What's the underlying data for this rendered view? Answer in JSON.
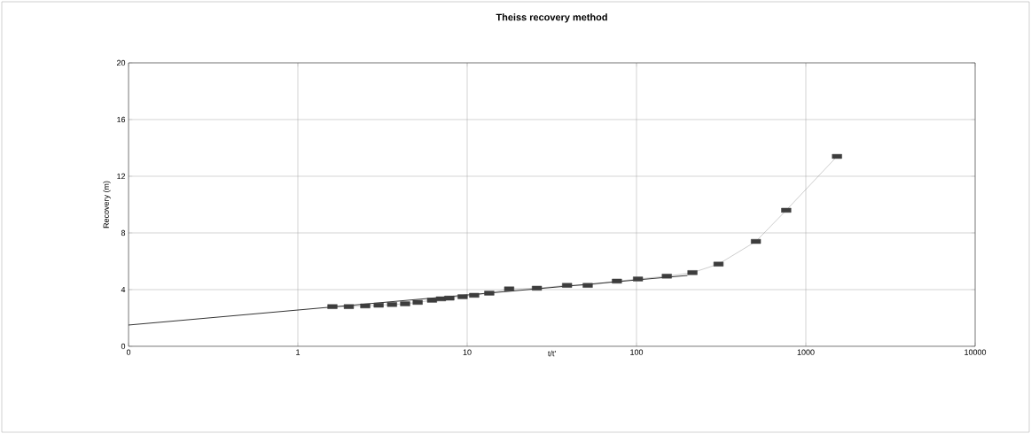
{
  "chart_data": {
    "type": "line",
    "title": "Theiss recovery method",
    "xlabel": "t/t'",
    "ylabel": "Recovery (m)",
    "log": "x",
    "grid": true,
    "xlim": [
      0.1,
      10000
    ],
    "ylim": [
      0,
      20
    ],
    "xticks": [
      {
        "value": 0.1,
        "label": "0"
      },
      1,
      10,
      100,
      1000,
      10000
    ],
    "yticks": [
      0,
      4,
      8,
      12,
      16,
      20
    ],
    "series": [
      {
        "color": "#999999",
        "marker": "square",
        "line_style": "solid",
        "x": [
          1.6,
          2.0,
          2.5,
          3.0,
          3.6,
          4.3,
          5.1,
          6.2,
          7.0,
          7.85,
          9.4,
          11,
          13.5,
          17.7,
          25.8,
          38.9,
          51.5,
          76.6,
          102,
          151,
          214,
          305,
          507,
          766,
          1528
        ],
        "values": [
          2.8,
          2.8,
          2.85,
          2.9,
          2.95,
          3.0,
          3.1,
          3.25,
          3.35,
          3.4,
          3.5,
          3.6,
          3.75,
          4.05,
          4.1,
          4.3,
          4.3,
          4.6,
          4.75,
          4.95,
          5.2,
          5.8,
          7.4,
          9.6,
          13.4
        ]
      },
      {
        "color": "#000000",
        "marker": "none",
        "line_style": "solid",
        "x": [
          0.1,
          200
        ],
        "values": [
          1.5,
          5.0
        ]
      }
    ]
  }
}
